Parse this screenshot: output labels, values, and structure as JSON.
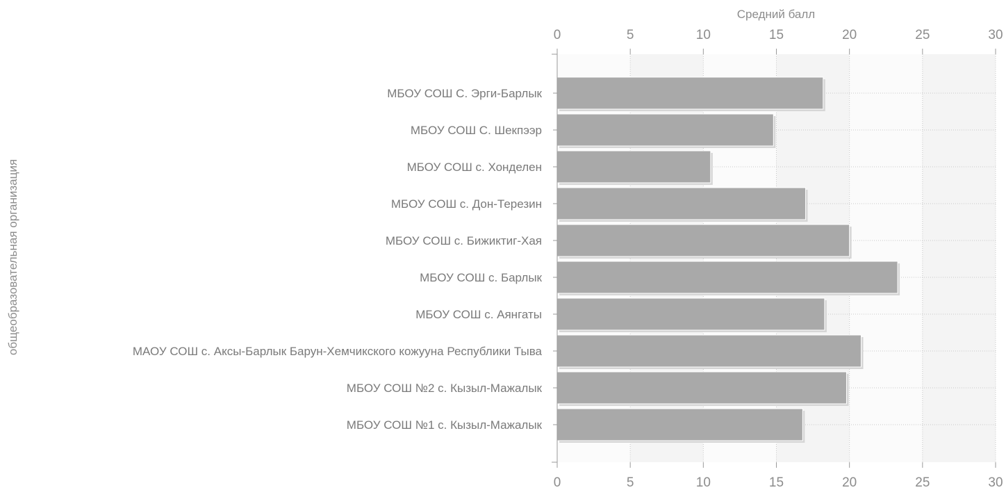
{
  "chart_data": {
    "type": "bar",
    "orientation": "horizontal",
    "title": "",
    "xlabel": "Средний балл",
    "ylabel": "общеобразовательная организация",
    "xlim": [
      0,
      30
    ],
    "x_ticks": [
      "0",
      "5",
      "10",
      "15",
      "20",
      "25",
      "30"
    ],
    "tick_positions": "top-and-bottom",
    "grid": true,
    "legend": "none",
    "bar_color": "#a9a9a9",
    "categories": [
      "МБОУ СОШ С. Эрги-Барлык",
      "МБОУ СОШ С. Шекпээр",
      "МБОУ СОШ с. Хонделен",
      "МБОУ СОШ с. Дон-Терезин",
      "МБОУ СОШ с. Бижиктиг-Хая",
      "МБОУ СОШ с. Барлык",
      "МБОУ СОШ с. Аянгаты",
      "МАОУ СОШ с. Аксы-Барлык Барун-Хемчикского кожууна Республики Тыва",
      "МБОУ СОШ №2 с. Кызыл-Мажалык",
      "МБОУ СОШ №1 с. Кызыл-Мажалык"
    ],
    "values": [
      18.2,
      14.8,
      10.5,
      17.0,
      20.0,
      23.3,
      18.3,
      20.8,
      19.8,
      16.8
    ]
  }
}
